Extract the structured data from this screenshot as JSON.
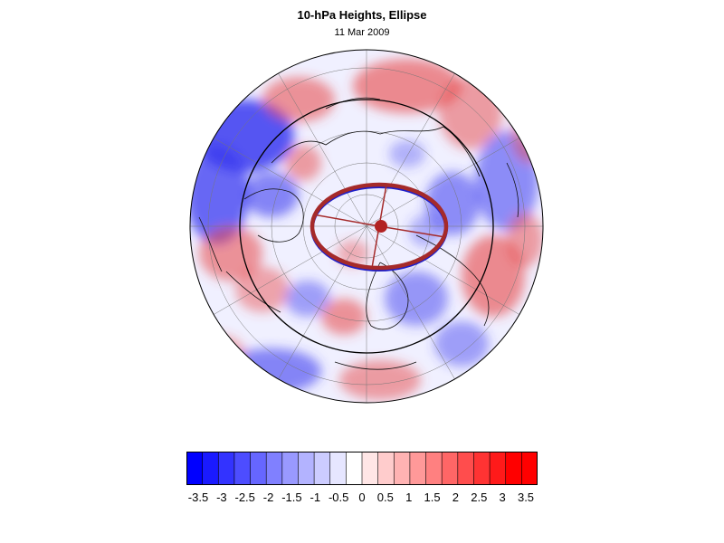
{
  "title": "10-hPa Heights, Ellipse",
  "subtitle": "11 Mar 2009",
  "colorbar": {
    "colors": [
      "#0000ff",
      "#1a1aff",
      "#3333ff",
      "#4d4dff",
      "#6666ff",
      "#8080ff",
      "#9999ff",
      "#b3b3ff",
      "#ccccff",
      "#e6e6ff",
      "#ffffff",
      "#ffe6e6",
      "#ffcccc",
      "#ffb3b3",
      "#ff9999",
      "#ff8080",
      "#ff6666",
      "#ff4d4d",
      "#ff3333",
      "#ff1a1a",
      "#ff0000",
      "#ff0000"
    ],
    "tick_labels": [
      "-3.5",
      "-3",
      "-2.5",
      "-2",
      "-1.5",
      "-1",
      "-0.5",
      "0",
      "0.5",
      "1",
      "1.5",
      "2",
      "2.5",
      "3",
      "3.5"
    ]
  },
  "legend_colors": {
    "positive": "#e84545",
    "negative": "#3b3bf0",
    "ellipse": "#a52a2a",
    "ellipse_inner": "#1f1fc8"
  }
}
